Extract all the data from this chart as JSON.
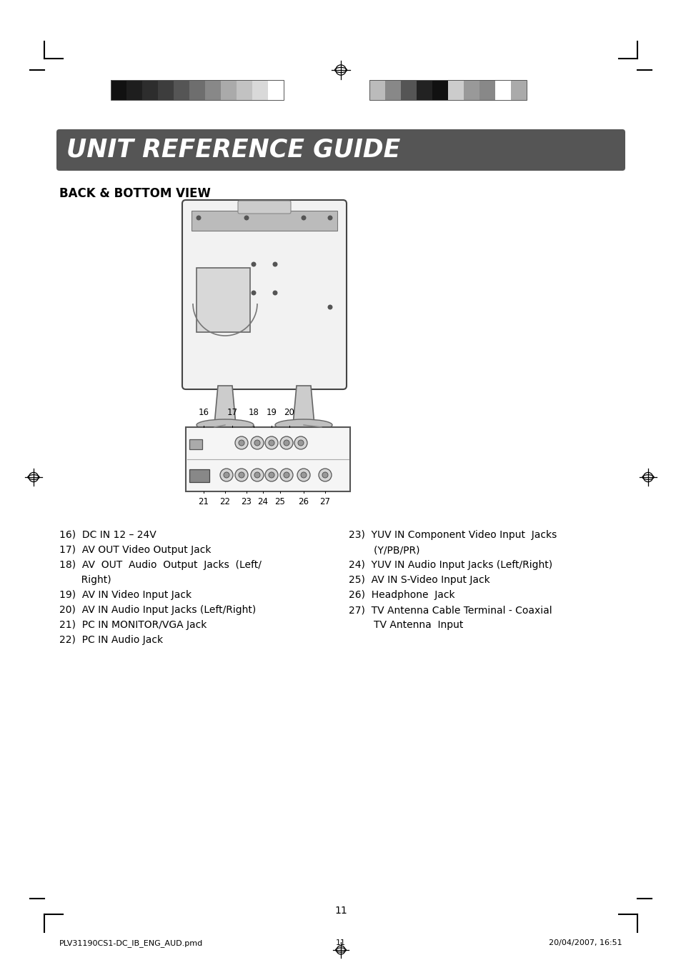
{
  "title": "UNIT REFERENCE GUIDE",
  "subtitle": "BACK & BOTTOM VIEW",
  "title_bg": "#555555",
  "title_color": "#ffffff",
  "body_bg": "#ffffff",
  "colors_left": [
    "#111111",
    "#1e1e1e",
    "#2d2d2d",
    "#3d3d3d",
    "#555555",
    "#6e6e6e",
    "#888888",
    "#aaaaaa",
    "#c2c2c2",
    "#d9d9d9",
    "#ffffff"
  ],
  "colors_right": [
    "#bbbbbb",
    "#888888",
    "#555555",
    "#222222",
    "#111111",
    "#cccccc",
    "#999999",
    "#888888",
    "#ffffff",
    "#aaaaaa"
  ],
  "footer_left": "PLV31190CS1-DC_IB_ENG_AUD.pmd",
  "footer_page_label": "11",
  "footer_right": "20/04/2007, 16:51",
  "page_number": "11",
  "left_lines": [
    "16)  DC IN 12 – 24V",
    "17)  AV OUT Video Output Jack",
    "18)  AV  OUT  Audio  Output  Jacks  (Left/",
    "       Right)",
    "19)  AV IN Video Input Jack",
    "20)  AV IN Audio Input Jacks (Left/Right)",
    "21)  PC IN MONITOR/VGA Jack",
    "22)  PC IN Audio Jack"
  ],
  "right_lines": [
    "23)  YUV IN Component Video Input  Jacks",
    "        (Y/PB/PR)",
    "24)  YUV IN Audio Input Jacks (Left/Right)",
    "25)  AV IN S-Video Input Jack",
    "26)  Headphone  Jack",
    "27)  TV Antenna Cable Terminal - Coaxial",
    "        TV Antenna  Input"
  ]
}
